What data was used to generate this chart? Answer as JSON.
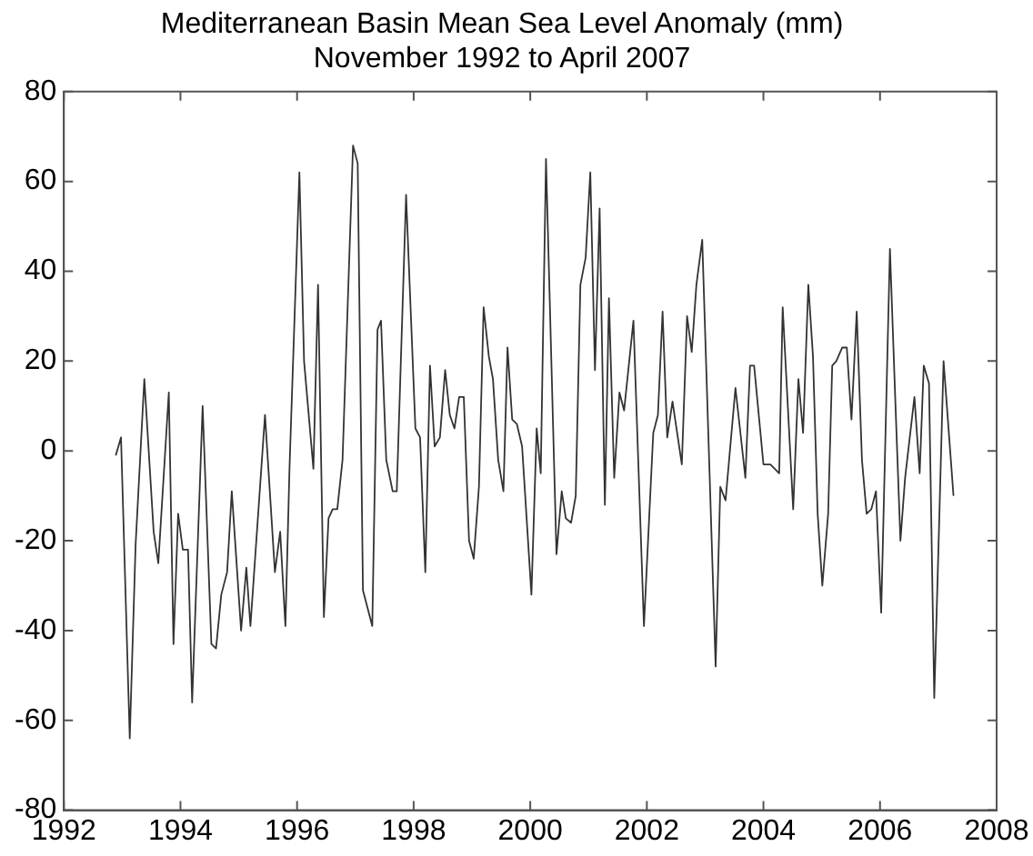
{
  "chart_data": {
    "type": "line",
    "title": "Mediterranean Basin Mean Sea Level Anomaly (mm)",
    "subtitle": "November 1992 to April 2007",
    "x": [
      1992.89,
      1992.98,
      1993.13,
      1993.23,
      1993.38,
      1993.54,
      1993.62,
      1993.8,
      1993.88,
      1993.96,
      1994.04,
      1994.13,
      1994.2,
      1994.38,
      1994.53,
      1994.61,
      1994.7,
      1994.8,
      1994.88,
      1995.04,
      1995.13,
      1995.2,
      1995.45,
      1995.62,
      1995.71,
      1995.8,
      1995.87,
      1996.04,
      1996.12,
      1996.28,
      1996.36,
      1996.46,
      1996.54,
      1996.61,
      1996.69,
      1996.78,
      1996.96,
      1997.04,
      1997.13,
      1997.29,
      1997.38,
      1997.44,
      1997.53,
      1997.64,
      1997.71,
      1997.87,
      1998.03,
      1998.11,
      1998.2,
      1998.28,
      1998.36,
      1998.45,
      1998.54,
      1998.62,
      1998.7,
      1998.78,
      1998.86,
      1998.95,
      1999.03,
      1999.12,
      1999.2,
      1999.29,
      1999.36,
      1999.45,
      1999.54,
      1999.61,
      1999.69,
      1999.77,
      1999.86,
      2000.02,
      2000.11,
      2000.18,
      2000.27,
      2000.45,
      2000.54,
      2000.61,
      2000.7,
      2000.78,
      2000.86,
      2000.95,
      2001.03,
      2001.11,
      2001.19,
      2001.28,
      2001.35,
      2001.44,
      2001.53,
      2001.61,
      2001.77,
      2001.95,
      2002.11,
      2002.19,
      2002.27,
      2002.35,
      2002.44,
      2002.6,
      2002.69,
      2002.77,
      2002.85,
      2002.95,
      2003.18,
      2003.26,
      2003.35,
      2003.52,
      2003.69,
      2003.77,
      2003.84,
      2004.0,
      2004.12,
      2004.27,
      2004.33,
      2004.51,
      2004.6,
      2004.68,
      2004.77,
      2004.85,
      2004.93,
      2005.01,
      2005.11,
      2005.18,
      2005.25,
      2005.35,
      2005.43,
      2005.51,
      2005.6,
      2005.69,
      2005.77,
      2005.85,
      2005.93,
      2006.02,
      2006.17,
      2006.26,
      2006.35,
      2006.43,
      2006.59,
      2006.68,
      2006.75,
      2006.84,
      2006.93,
      2007.01,
      2007.09,
      2007.26
    ],
    "series": [
      {
        "color": "#333333",
        "values": [
          -1,
          3,
          -64,
          -21,
          16,
          -18,
          -25,
          13,
          -43,
          -14,
          -22,
          -22,
          -56,
          10,
          -43,
          -44,
          -32,
          -27,
          -9,
          -40,
          -26,
          -39,
          8,
          -27,
          -18,
          -39,
          -4,
          62,
          20,
          -4,
          37,
          -37,
          -15,
          -13,
          -13,
          -2,
          68,
          64,
          -31,
          -39,
          27,
          29,
          -2,
          -9,
          -9,
          57,
          5,
          3,
          -27,
          19,
          1,
          3,
          18,
          8,
          5,
          12,
          12,
          -20,
          -24,
          -8,
          32,
          21,
          16,
          -2,
          -9,
          23,
          7,
          6,
          1,
          -32,
          5,
          -5,
          65,
          -23,
          -9,
          -15,
          -16,
          -10,
          37,
          43,
          62,
          18,
          54,
          -12,
          34,
          -6,
          13,
          9,
          29,
          -39,
          4,
          8,
          31,
          3,
          11,
          -3,
          30,
          22,
          37,
          47,
          -48,
          -8,
          -11,
          14,
          -6,
          19,
          19,
          -3,
          -3,
          -5,
          32,
          -13,
          16,
          4,
          37,
          21,
          -14,
          -30,
          -14,
          19,
          20,
          23,
          23,
          7,
          31,
          -2,
          -14,
          -13,
          -9,
          -36,
          45,
          12,
          -20,
          -6,
          12,
          -5,
          19,
          15,
          -55,
          -18,
          20,
          -10
        ]
      }
    ],
    "xlim": [
      1992,
      2008
    ],
    "xticks": [
      1992,
      1994,
      1996,
      1998,
      2000,
      2002,
      2004,
      2006,
      2008
    ],
    "ylim": [
      -80,
      80
    ],
    "yticks": [
      -80,
      -60,
      -40,
      -20,
      0,
      20,
      40,
      60,
      80
    ],
    "grid": false,
    "legend": false,
    "marker": "none",
    "line_style": "solid"
  }
}
